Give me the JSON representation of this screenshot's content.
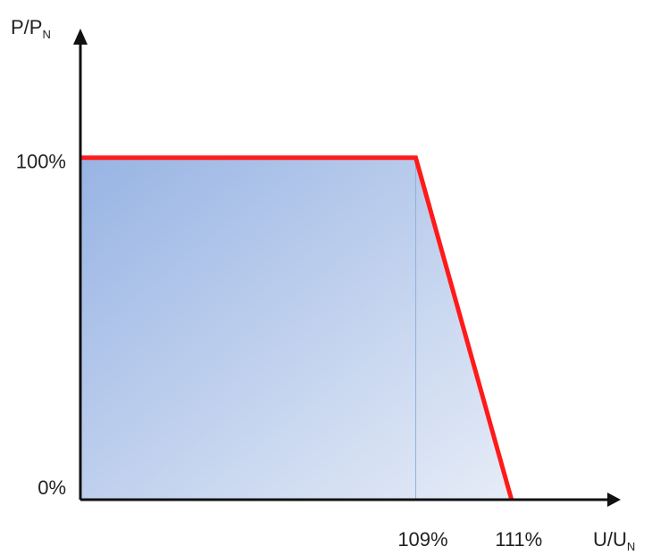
{
  "chart_data": {
    "type": "area",
    "ylabel": {
      "text": "P/P",
      "subscript": "N"
    },
    "xlabel": {
      "text": "U/U",
      "subscript": "N"
    },
    "series": [
      {
        "x": [
          102,
          109,
          111
        ],
        "values": [
          100,
          100,
          0
        ],
        "color": "#ff1a1a",
        "fill_gradient": [
          "#98b4e4",
          "#e6ecf7"
        ]
      }
    ],
    "xlim": [
      102,
      113
    ],
    "ylim": [
      0,
      137
    ],
    "xticks": [
      {
        "value": 109,
        "label": "109%"
      },
      {
        "value": 111,
        "label": "111%"
      }
    ],
    "yticks": [
      {
        "value": 0,
        "label": "0%"
      },
      {
        "value": 100,
        "label": "100%"
      }
    ]
  }
}
